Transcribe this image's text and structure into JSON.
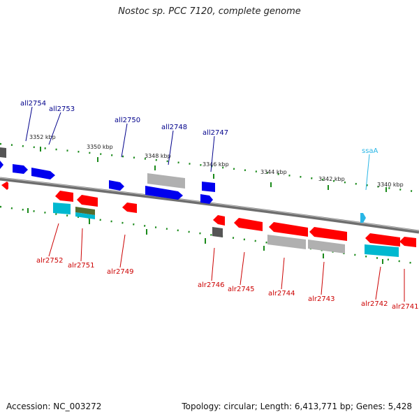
{
  "header": {
    "title": "Nostoc sp. PCC 7120, complete genome"
  },
  "footer": {
    "accession": "Accession: NC_003272",
    "summary": "Topology: circular; Length: 6,413,771 bp; Genes: 5,428"
  },
  "colors": {
    "backbone": "#7a7a7a",
    "tick": "#1a8a1a",
    "forward_label": "#00008b",
    "reverse_label": "#cc0000",
    "rna_label": "#29b6e6",
    "cds": "#ff0000",
    "cds_forward": "#0000ee",
    "pseudo": "#b0b0b0",
    "misc": "#00b8d0",
    "other": "#556b2f",
    "dark": "#555555"
  },
  "axis": {
    "ticks": [
      {
        "label": "3352 kbp"
      },
      {
        "label": "3350 kbp"
      },
      {
        "label": "3348 kbp"
      },
      {
        "label": "3346 kbp"
      },
      {
        "label": "3344 kbp"
      },
      {
        "label": "3342 kbp"
      },
      {
        "label": "3340 kbp"
      }
    ]
  },
  "labels": {
    "forward": [
      {
        "name": "all2754"
      },
      {
        "name": "all2753"
      },
      {
        "name": "all2750"
      },
      {
        "name": "all2748"
      },
      {
        "name": "all2747"
      }
    ],
    "rna": [
      {
        "name": "ssaA"
      }
    ],
    "reverse": [
      {
        "name": "alr2752"
      },
      {
        "name": "alr2751"
      },
      {
        "name": "alr2749"
      },
      {
        "name": "alr2746"
      },
      {
        "name": "alr2745"
      },
      {
        "name": "alr2744"
      },
      {
        "name": "alr2743"
      },
      {
        "name": "alr2742"
      },
      {
        "name": "alr2741"
      }
    ]
  }
}
